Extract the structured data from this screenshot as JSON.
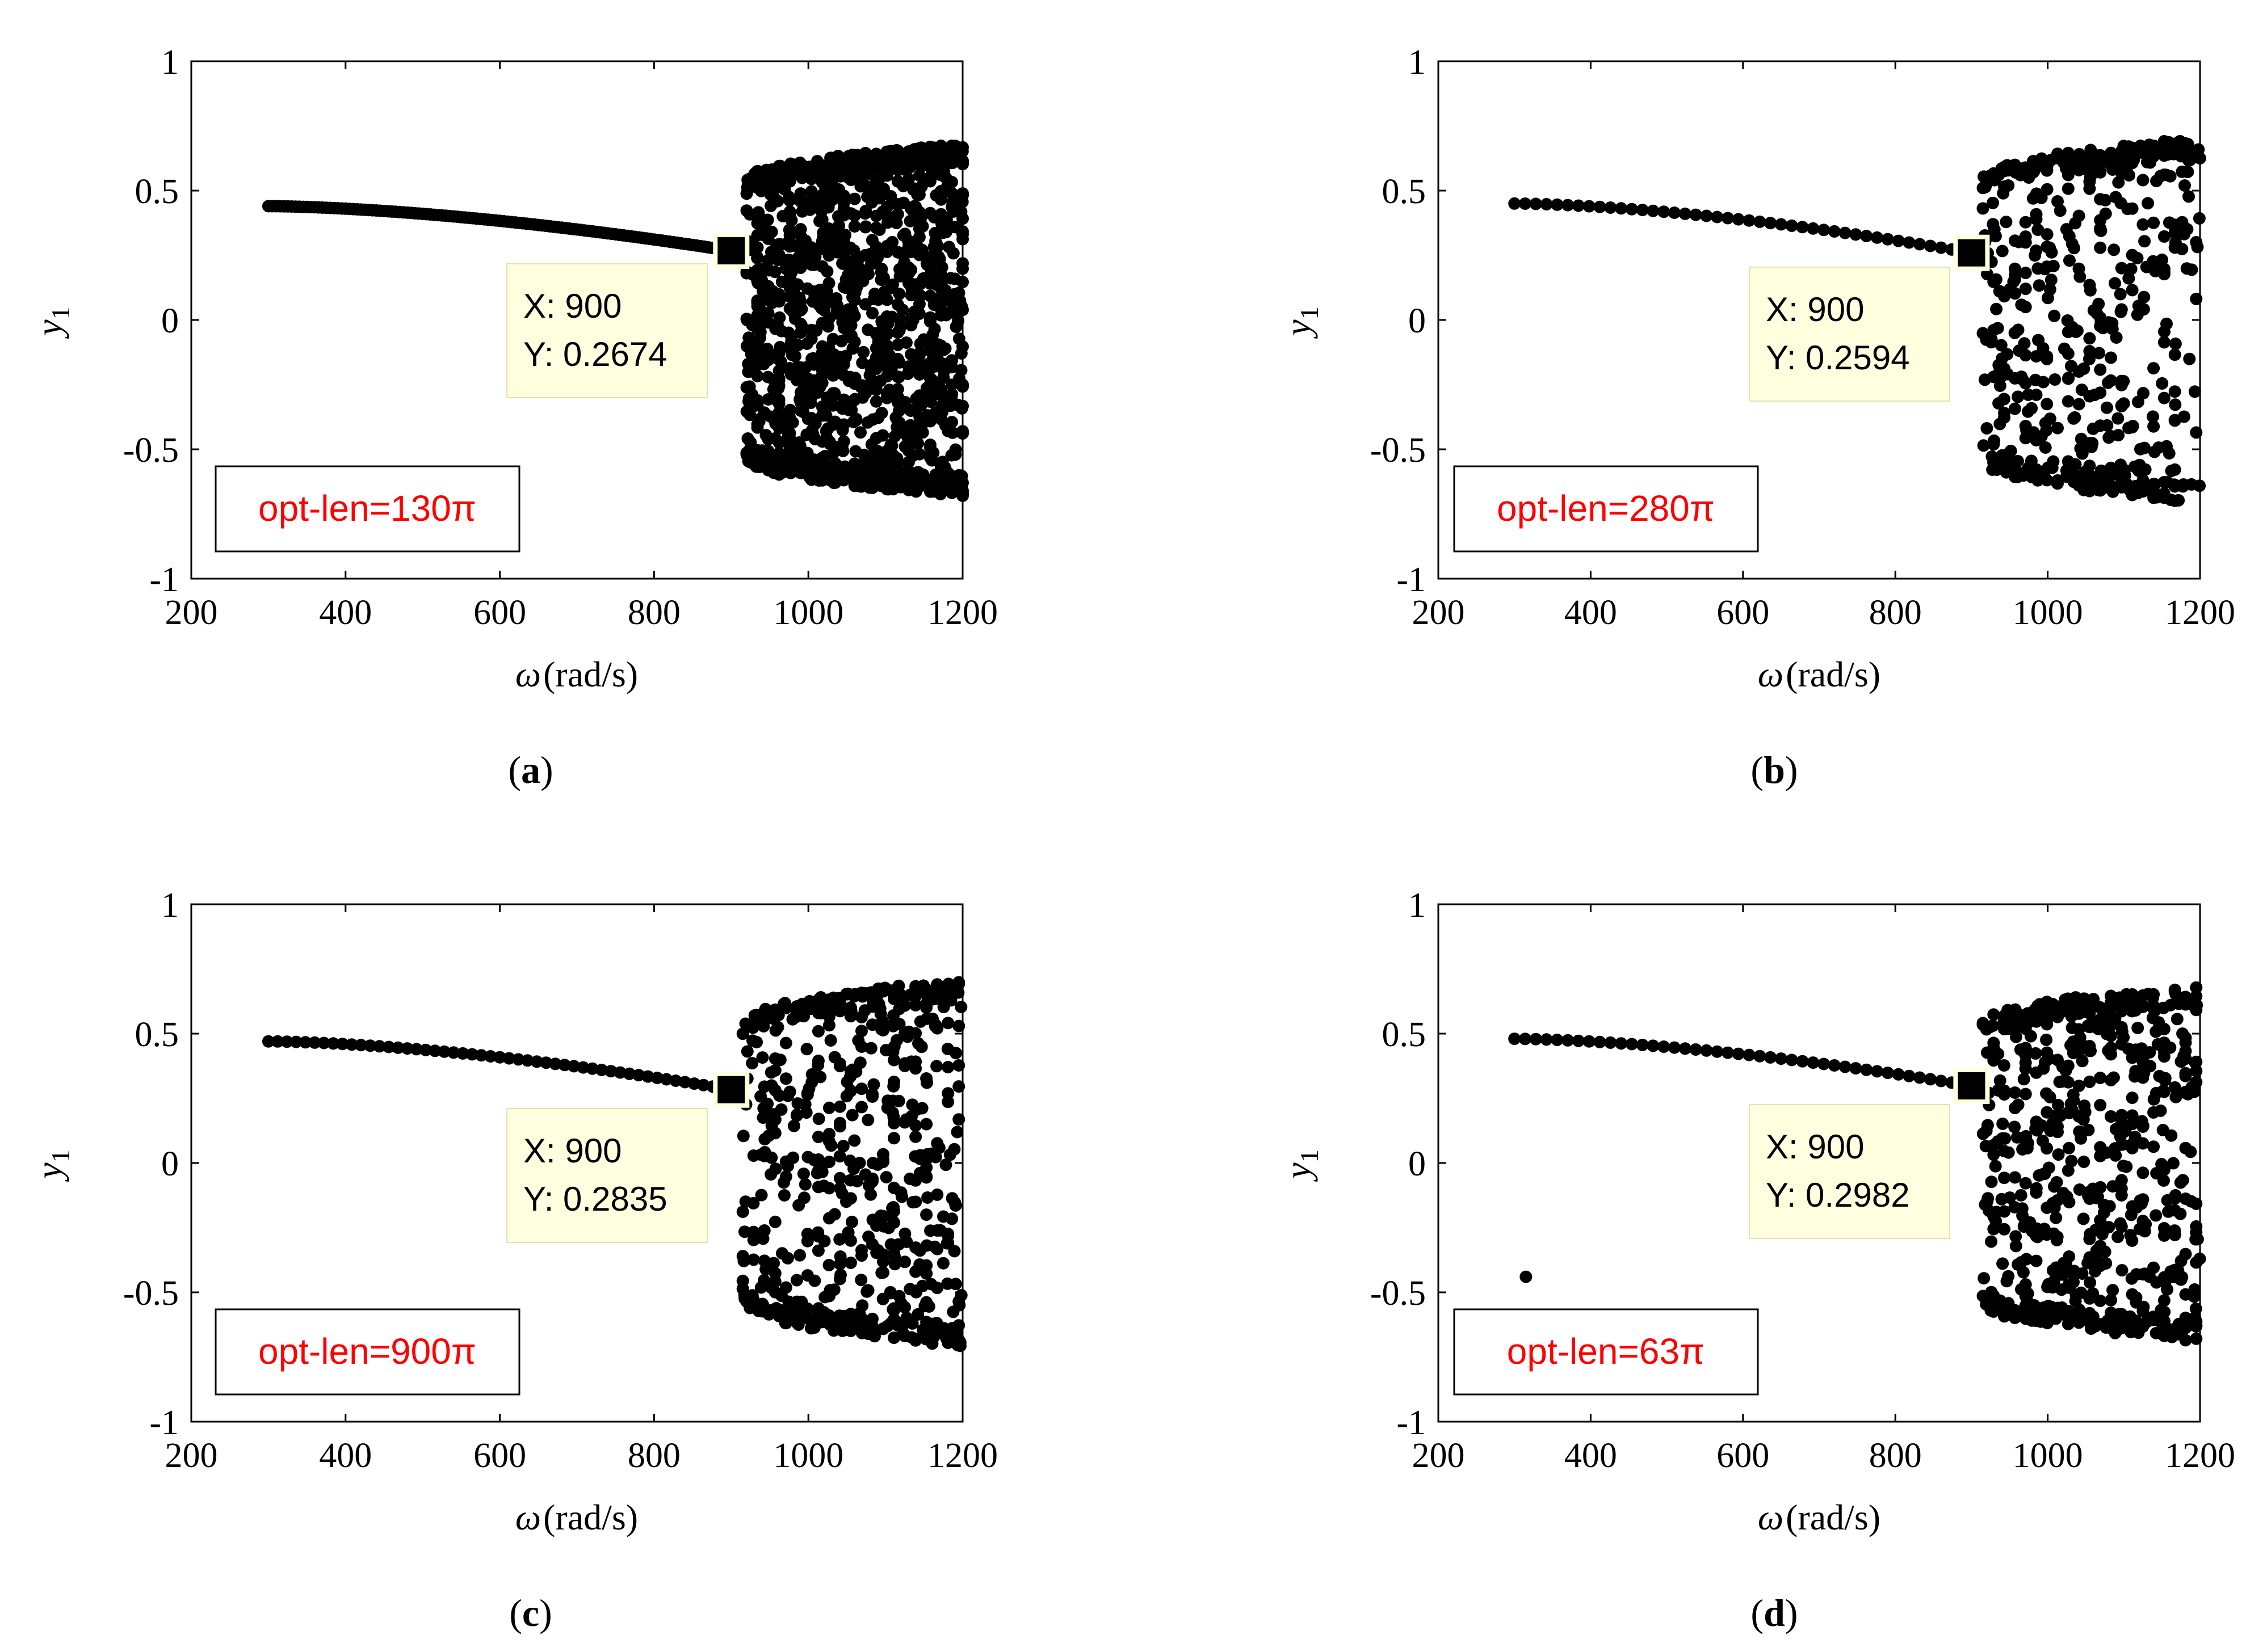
{
  "colors": {
    "marker": "#000000",
    "legend_text": "#ff0000",
    "datatip_bg": "#ffffe0",
    "frame": "#000000"
  },
  "chart_data": [
    {
      "panel": "a",
      "caption": {
        "open": "(",
        "letter": "a",
        "close": ")"
      },
      "type": "scatter",
      "xlabel": {
        "symbol": "ω",
        "unit": "(rad/s)"
      },
      "ylabel": {
        "symbol": "y",
        "subscript": "1"
      },
      "xlim": [
        200,
        1200
      ],
      "ylim": [
        -1,
        1
      ],
      "xticks": [
        "200",
        "400",
        "600",
        "800",
        "1000",
        "1200"
      ],
      "yticks": [
        "1",
        "0.5",
        "0",
        "-0.5",
        "-1"
      ],
      "legend": "opt-len=130π",
      "datatip": {
        "x": 900,
        "y": 0.2674,
        "x_text": "X: 900",
        "y_text": "Y: 0.2674"
      },
      "periodic_branch": {
        "x_start": 300,
        "x_end": 900,
        "y_start": 0.44,
        "y_end": 0.2674,
        "step": 5
      },
      "chaotic_region": {
        "x_start": 920,
        "x_end": 1200,
        "y_start_abs": 0.55,
        "y_end_abs": 0.68,
        "points": 1500,
        "seed": 11
      },
      "outliers": []
    },
    {
      "panel": "b",
      "caption": {
        "open": "(",
        "letter": "b",
        "close": ")"
      },
      "type": "scatter",
      "xlabel": {
        "symbol": "ω",
        "unit": "(rad/s)"
      },
      "ylabel": {
        "symbol": "y",
        "subscript": "1"
      },
      "xlim": [
        200,
        1200
      ],
      "ylim": [
        -1,
        1
      ],
      "xticks": [
        "200",
        "400",
        "600",
        "800",
        "1000",
        "1200"
      ],
      "yticks": [
        "1",
        "0.5",
        "0",
        "-0.5",
        "-1"
      ],
      "legend": "opt-len=280π",
      "datatip": {
        "x": 900,
        "y": 0.2594,
        "x_text": "X: 900",
        "y_text": "Y: 0.2594"
      },
      "periodic_branch": {
        "x_start": 300,
        "x_end": 900,
        "y_start": 0.45,
        "y_end": 0.2594,
        "step": 14
      },
      "chaotic_region": {
        "x_start": 915,
        "x_end": 1200,
        "y_start_abs": 0.55,
        "y_end_abs": 0.71,
        "points": 560,
        "seed": 23
      },
      "outliers": []
    },
    {
      "panel": "c",
      "caption": {
        "open": "(",
        "letter": "c",
        "close": ")"
      },
      "type": "scatter",
      "xlabel": {
        "symbol": "ω",
        "unit": "(rad/s)"
      },
      "ylabel": {
        "symbol": "y",
        "subscript": "1"
      },
      "xlim": [
        200,
        1200
      ],
      "ylim": [
        -1,
        1
      ],
      "xticks": [
        "200",
        "400",
        "600",
        "800",
        "1000",
        "1200"
      ],
      "yticks": [
        "1",
        "0.5",
        "0",
        "-0.5",
        "-1"
      ],
      "legend": "opt-len=900π",
      "datatip": {
        "x": 900,
        "y": 0.2835,
        "x_text": "X: 900",
        "y_text": "Y: 0.2835"
      },
      "periodic_branch": {
        "x_start": 300,
        "x_end": 900,
        "y_start": 0.47,
        "y_end": 0.2835,
        "step": 12
      },
      "chaotic_region": {
        "x_start": 915,
        "x_end": 1200,
        "y_start_abs": 0.55,
        "y_end_abs": 0.71,
        "points": 640,
        "seed": 37
      },
      "outliers": []
    },
    {
      "panel": "d",
      "caption": {
        "open": "(",
        "letter": "d",
        "close": ")"
      },
      "type": "scatter",
      "xlabel": {
        "symbol": "ω",
        "unit": "(rad/s)"
      },
      "ylabel": {
        "symbol": "y",
        "subscript": "1"
      },
      "xlim": [
        200,
        1200
      ],
      "ylim": [
        -1,
        1
      ],
      "xticks": [
        "200",
        "400",
        "600",
        "800",
        "1000",
        "1200"
      ],
      "yticks": [
        "1",
        "0.5",
        "0",
        "-0.5",
        "-1"
      ],
      "legend": "opt-len=63π",
      "datatip": {
        "x": 900,
        "y": 0.2982,
        "x_text": "X: 900",
        "y_text": "Y: 0.2982"
      },
      "periodic_branch": {
        "x_start": 300,
        "x_end": 900,
        "y_start": 0.48,
        "y_end": 0.2982,
        "step": 14
      },
      "chaotic_region": {
        "x_start": 915,
        "x_end": 1200,
        "y_start_abs": 0.55,
        "y_end_abs": 0.69,
        "points": 720,
        "seed": 53
      },
      "outliers": [
        {
          "x": 315,
          "y": -0.44
        }
      ]
    }
  ]
}
